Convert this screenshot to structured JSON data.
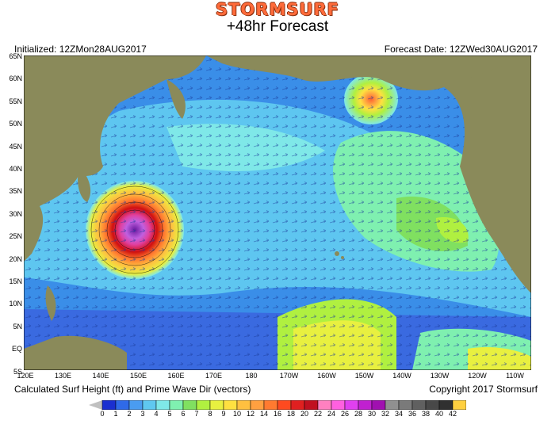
{
  "header": {
    "brand": "STORMSURF",
    "title": "+48hr Forecast",
    "initialized": "Initialized: 12ZMon28AUG2017",
    "forecast_date": "Forecast Date: 12ZWed30AUG2017"
  },
  "footer": {
    "caption": "Calculated Surf Height (ft) and Prime Wave Dir (vectors)",
    "copyright": "Copyright 2017 Stormsurf"
  },
  "lat_labels": [
    "65N",
    "60N",
    "55N",
    "50N",
    "45N",
    "40N",
    "35N",
    "30N",
    "25N",
    "20N",
    "15N",
    "10N",
    "5N",
    "EQ",
    "5S"
  ],
  "lon_labels": [
    "120E",
    "130E",
    "140E",
    "150E",
    "160E",
    "170E",
    "180",
    "170W",
    "160W",
    "150W",
    "140W",
    "130W",
    "120W",
    "110W"
  ],
  "legend": {
    "values": [
      "0",
      "1",
      "2",
      "3",
      "4",
      "5",
      "6",
      "7",
      "8",
      "9",
      "10",
      "12",
      "14",
      "16",
      "18",
      "20",
      "22",
      "24",
      "26",
      "28",
      "30",
      "32",
      "34",
      "36",
      "38",
      "40",
      "42"
    ],
    "colors": [
      "#1a2fd0",
      "#2f6ae8",
      "#4a9cf0",
      "#5fc8f0",
      "#7fe8e8",
      "#7ff0b0",
      "#80e060",
      "#b0f040",
      "#e8f040",
      "#ffe040",
      "#ffc040",
      "#ffa040",
      "#ff7a30",
      "#ff4a20",
      "#e02020",
      "#c01020",
      "#ff80c0",
      "#ff60e0",
      "#e040f0",
      "#c020d0",
      "#a010b0",
      "#909090",
      "#7a7a7a",
      "#606060",
      "#484848",
      "#303030",
      "#ffd040"
    ],
    "units": "ft"
  },
  "map": {
    "land_color": "#8a8a5a",
    "ocean_base": "#3a7ee0",
    "storm": "West Pacific typhoon near 30N 145E",
    "storm2": "Gulf of Alaska low near 55N 150W"
  }
}
